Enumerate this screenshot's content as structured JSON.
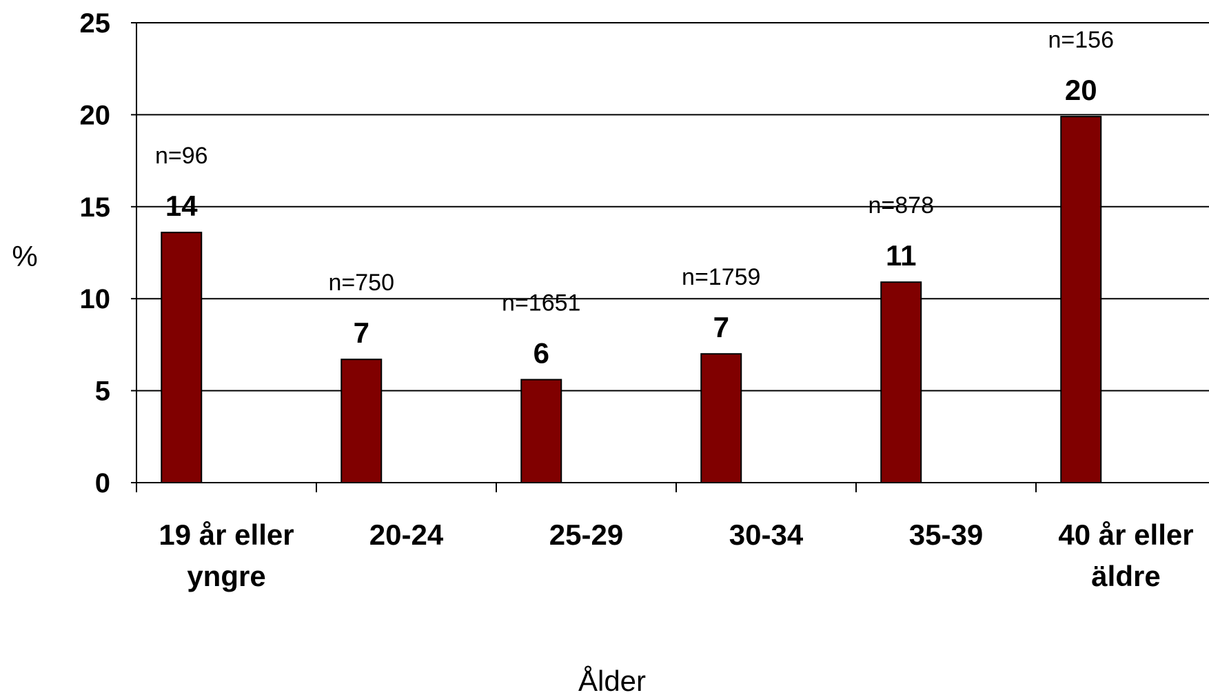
{
  "chart_data": {
    "type": "bar",
    "categories": [
      "19 år eller yngre",
      "20-24",
      "25-29",
      "30-34",
      "35-39",
      "40 år eller äldre"
    ],
    "category_lines": [
      [
        "19 år eller",
        "yngre"
      ],
      [
        "20-24"
      ],
      [
        "25-29"
      ],
      [
        "30-34"
      ],
      [
        "35-39"
      ],
      [
        "40 år eller",
        "äldre"
      ]
    ],
    "values": [
      13.6,
      6.7,
      5.6,
      7.0,
      10.9,
      19.9
    ],
    "value_labels": [
      "14",
      "7",
      "6",
      "7",
      "11",
      "20"
    ],
    "n_labels": [
      "n=96",
      "n=750",
      "n=1651",
      "n=1759",
      "n=878",
      "n=156"
    ],
    "xlabel": "Ålder",
    "ylabel": "%",
    "ylim": [
      0,
      25
    ],
    "yticks": [
      0,
      5,
      10,
      15,
      20,
      25
    ],
    "grid": true,
    "colors": {
      "bar": "#800000",
      "bar_stroke": "#000000",
      "grid": "#000000"
    }
  }
}
